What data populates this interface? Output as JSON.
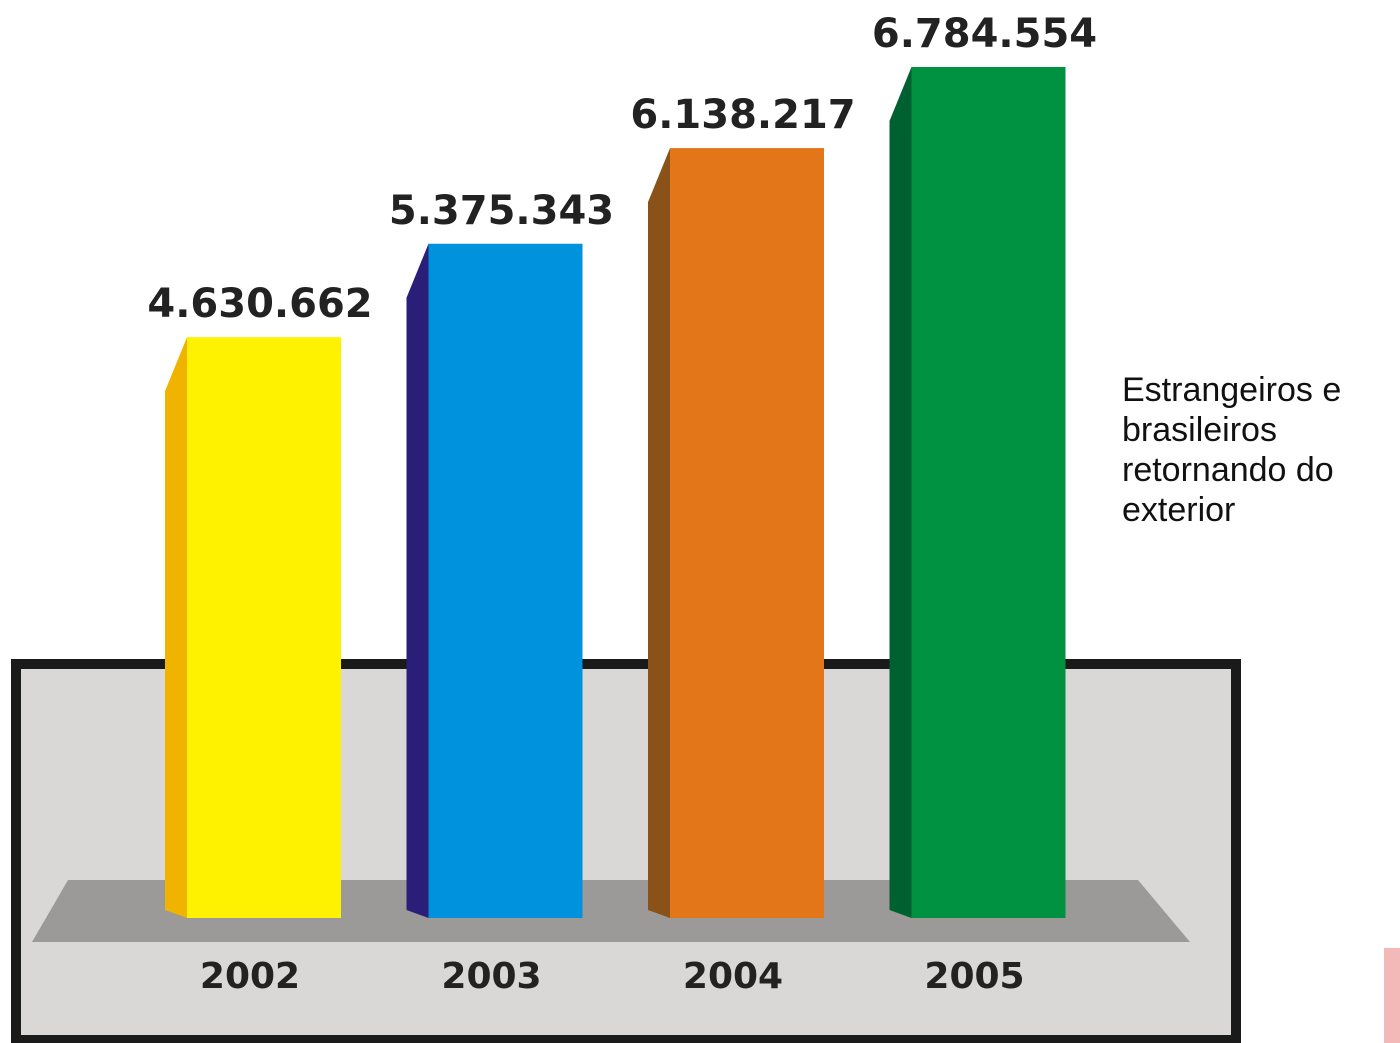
{
  "chart_data": {
    "type": "bar",
    "categories": [
      "2002",
      "2003",
      "2004",
      "2005"
    ],
    "values": [
      4630662,
      5375343,
      6138217,
      6784554
    ],
    "value_labels": [
      "4.630.662",
      "5.375.343",
      "6.138.217",
      "6.784.554"
    ],
    "title": "",
    "xlabel": "",
    "ylabel": "",
    "legend": [
      "Estrangeiros e brasileiros retornando do exterior"
    ],
    "legend_position": "right",
    "grid": false,
    "colors": {
      "bars": [
        "#fff200",
        "#0092dc",
        "#e4761a",
        "#009240"
      ],
      "sides": [
        "#f0b400",
        "#2a1e78",
        "#8a5218",
        "#006030"
      ],
      "floor": "#9b9a98",
      "panel": "#d9d8d6",
      "border": "#1a1a1a"
    }
  }
}
